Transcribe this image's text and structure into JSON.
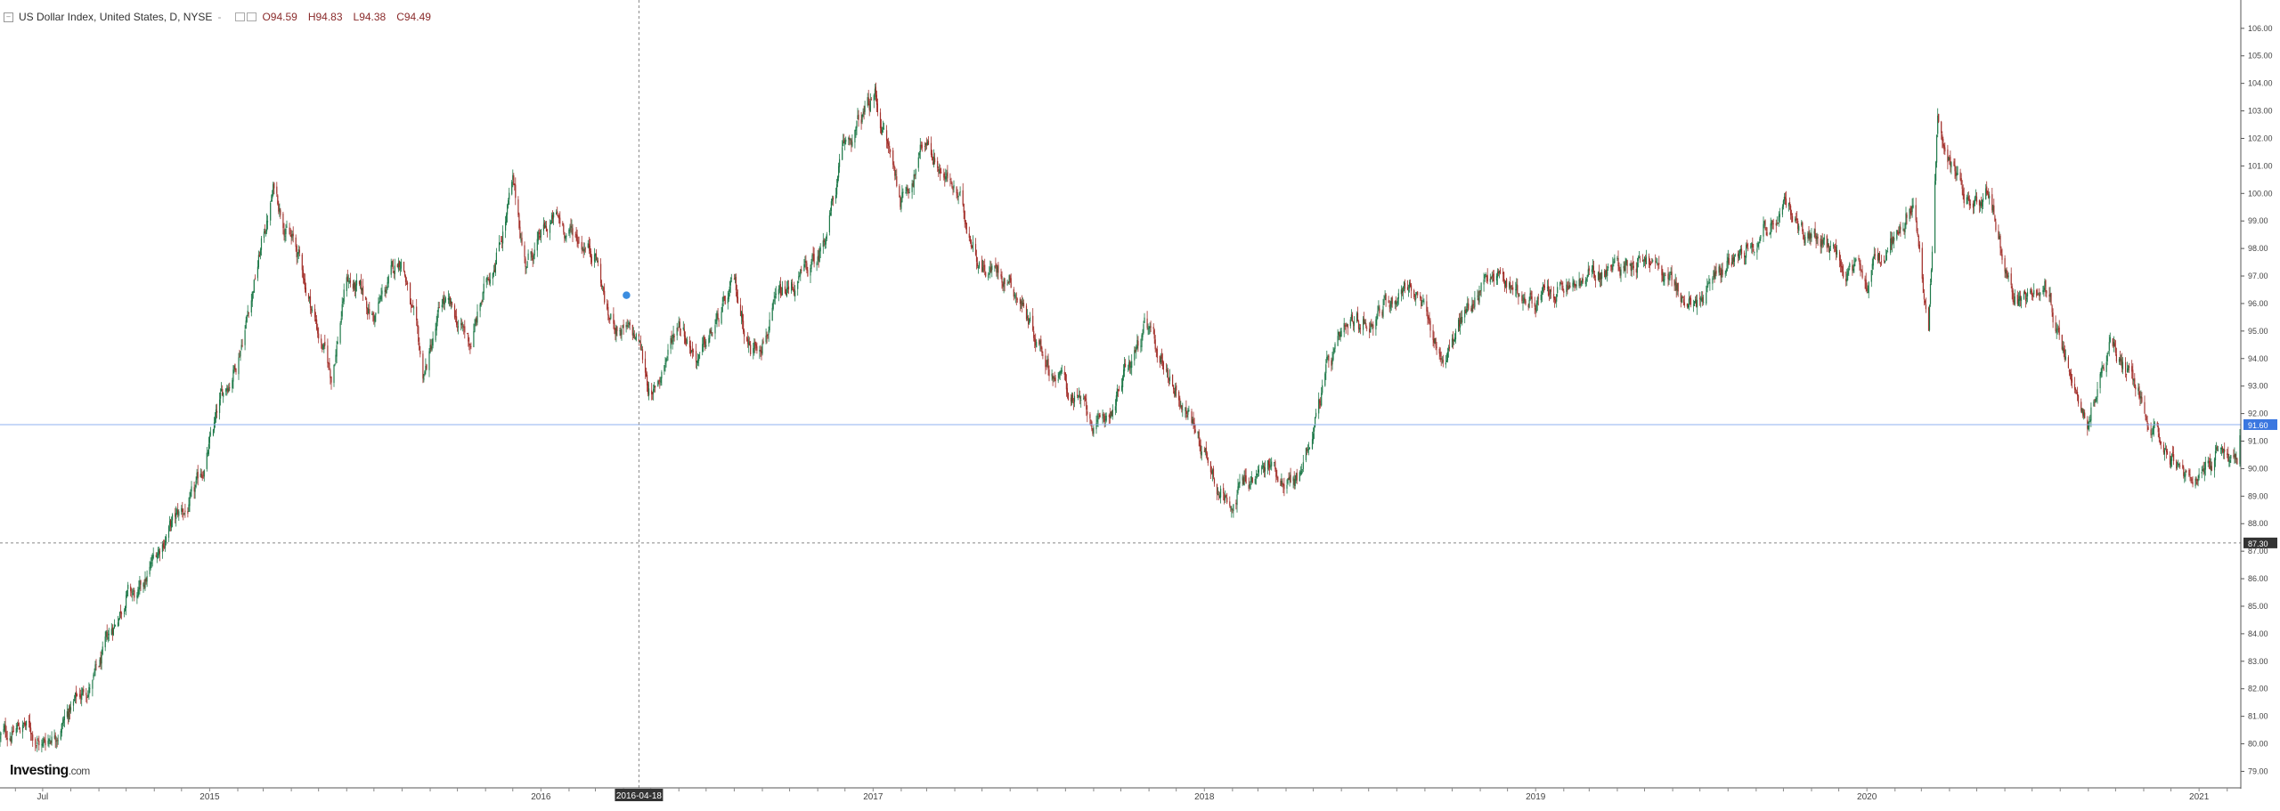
{
  "legend": {
    "symbol_title": "US Dollar Index, United States, D, NYSE",
    "open": "O94.59",
    "high": "H94.83",
    "low": "L94.38",
    "close": "C94.49",
    "dash": "-"
  },
  "brand": {
    "name": "Investing",
    "domain": ".com"
  },
  "crosshair": {
    "date_label": "2016-04-18",
    "price_label": "87.30",
    "price": 87.3
  },
  "last_price": {
    "label": "91.60",
    "value": 91.6
  },
  "colors": {
    "up": "#1f7a4a",
    "down": "#a3302b",
    "crosshair": "#888888",
    "last_line": "#8fb0f0",
    "last_tag": "#3b77e0"
  },
  "chart_data": {
    "type": "candlestick",
    "title": "US Dollar Index, United States, D, NYSE",
    "interval": "D",
    "ylim": [
      78.4,
      106.9
    ],
    "y_ticks": [
      "79.00",
      "80.00",
      "81.00",
      "82.00",
      "83.00",
      "84.00",
      "85.00",
      "86.00",
      "87.00",
      "88.00",
      "89.00",
      "90.00",
      "91.00",
      "92.00",
      "93.00",
      "94.00",
      "95.00",
      "96.00",
      "97.00",
      "98.00",
      "99.00",
      "100.00",
      "101.00",
      "102.00",
      "103.00",
      "104.00",
      "105.00",
      "106.00"
    ],
    "x_ticks": [
      "Jul",
      "2015",
      "2016",
      "2016-04-18",
      "2017",
      "2018",
      "2019",
      "2020",
      "2021"
    ],
    "x_tick_values": [
      "2014-07-01",
      "2015-01-01",
      "2016-01-01",
      "2016-04-18",
      "2017-01-01",
      "2018-01-01",
      "2019-01-01",
      "2020-01-01",
      "2021-01-01"
    ],
    "x_range": [
      "2014-05-15",
      "2021-02-15"
    ],
    "grid": false,
    "series_path": [
      [
        "2014-05-15",
        80.2
      ],
      [
        "2014-06-10",
        80.7
      ],
      [
        "2014-07-01",
        80.0
      ],
      [
        "2014-08-01",
        81.3
      ],
      [
        "2014-09-01",
        82.6
      ],
      [
        "2014-10-01",
        85.6
      ],
      [
        "2014-10-15",
        85.2
      ],
      [
        "2014-11-15",
        87.8
      ],
      [
        "2014-12-15",
        88.8
      ],
      [
        "2015-01-15",
        92.5
      ],
      [
        "2015-02-01",
        94.2
      ],
      [
        "2015-03-13",
        100.2
      ],
      [
        "2015-04-10",
        97.5
      ],
      [
        "2015-05-15",
        93.3
      ],
      [
        "2015-06-01",
        97.0
      ],
      [
        "2015-07-01",
        95.5
      ],
      [
        "2015-08-01",
        97.8
      ],
      [
        "2015-08-24",
        93.2
      ],
      [
        "2015-09-15",
        96.0
      ],
      [
        "2015-10-15",
        94.5
      ],
      [
        "2015-12-01",
        100.2
      ],
      [
        "2015-12-15",
        97.5
      ],
      [
        "2016-01-15",
        99.0
      ],
      [
        "2016-03-01",
        98.0
      ],
      [
        "2016-03-15",
        95.5
      ],
      [
        "2016-04-18",
        94.5
      ],
      [
        "2016-05-03",
        92.5
      ],
      [
        "2016-06-01",
        95.5
      ],
      [
        "2016-06-24",
        94.0
      ],
      [
        "2016-08-01",
        96.5
      ],
      [
        "2016-08-20",
        94.3
      ],
      [
        "2016-09-15",
        95.8
      ],
      [
        "2016-11-01",
        97.5
      ],
      [
        "2016-11-30",
        101.5
      ],
      [
        "2017-01-03",
        103.5
      ],
      [
        "2017-02-01",
        99.8
      ],
      [
        "2017-03-01",
        102.0
      ],
      [
        "2017-04-01",
        100.0
      ],
      [
        "2017-05-01",
        97.5
      ],
      [
        "2017-06-01",
        97.0
      ],
      [
        "2017-07-15",
        93.8
      ],
      [
        "2017-09-08",
        91.3
      ],
      [
        "2017-10-27",
        95.0
      ],
      [
        "2017-12-01",
        93.0
      ],
      [
        "2018-01-25",
        88.9
      ],
      [
        "2018-02-15",
        89.5
      ],
      [
        "2018-03-15",
        90.0
      ],
      [
        "2018-04-15",
        89.6
      ],
      [
        "2018-05-15",
        93.5
      ],
      [
        "2018-06-15",
        95.0
      ],
      [
        "2018-08-15",
        96.8
      ],
      [
        "2018-09-20",
        94.0
      ],
      [
        "2018-11-12",
        97.3
      ],
      [
        "2019-01-01",
        96.0
      ],
      [
        "2019-03-01",
        96.8
      ],
      [
        "2019-05-01",
        97.8
      ],
      [
        "2019-06-25",
        95.8
      ],
      [
        "2019-08-15",
        98.2
      ],
      [
        "2019-09-30",
        99.4
      ],
      [
        "2019-11-15",
        98.0
      ],
      [
        "2019-12-31",
        96.5
      ],
      [
        "2020-02-20",
        99.9
      ],
      [
        "2020-03-09",
        94.9
      ],
      [
        "2020-03-19",
        103.0
      ],
      [
        "2020-04-15",
        99.8
      ],
      [
        "2020-05-15",
        100.2
      ],
      [
        "2020-06-10",
        96.0
      ],
      [
        "2020-07-15",
        96.3
      ],
      [
        "2020-08-31",
        92.1
      ],
      [
        "2020-09-25",
        94.6
      ],
      [
        "2020-11-05",
        92.2
      ],
      [
        "2020-12-17",
        89.7
      ],
      [
        "2021-01-06",
        89.4
      ],
      [
        "2021-01-27",
        90.8
      ],
      [
        "2021-02-12",
        90.4
      ],
      [
        "2021-02-15",
        91.6
      ]
    ]
  }
}
